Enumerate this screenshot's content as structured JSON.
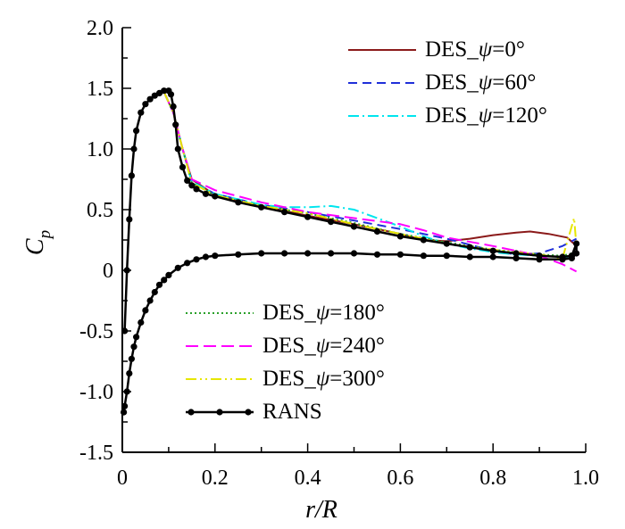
{
  "chart_data": {
    "type": "line",
    "title": "",
    "xlabel": "r/R",
    "ylabel": "C_p",
    "ylabel_main": "C",
    "ylabel_sub": "p",
    "xlim": [
      0,
      1.0
    ],
    "ylim": [
      -1.5,
      2.0
    ],
    "x_ticks": [
      0,
      0.2,
      0.4,
      0.6,
      0.8,
      1.0
    ],
    "x_tick_labels": [
      "0",
      "0.2",
      "0.4",
      "0.6",
      "0.8",
      "1.0"
    ],
    "y_ticks": [
      -1.5,
      -1.0,
      -0.5,
      0,
      0.5,
      1.0,
      1.5,
      2.0
    ],
    "y_tick_labels": [
      "-1.5",
      "-1.0",
      "-0.5",
      "0",
      "0.5",
      "1.0",
      "1.5",
      "2.0"
    ],
    "grid": false,
    "series": [
      {
        "name": "DES_ψ=0°",
        "prefix": "DES_",
        "greek": "ψ",
        "suffix": "=0°",
        "color": "#8B1A1A",
        "dash": "",
        "legend_group": "top",
        "x": [
          0.09,
          0.11,
          0.13,
          0.15,
          0.2,
          0.3,
          0.4,
          0.5,
          0.6,
          0.65,
          0.7,
          0.75,
          0.8,
          0.85,
          0.88,
          0.92,
          0.96,
          0.98
        ],
        "y": [
          1.47,
          1.3,
          1.0,
          0.75,
          0.62,
          0.53,
          0.45,
          0.38,
          0.3,
          0.25,
          0.24,
          0.26,
          0.29,
          0.31,
          0.32,
          0.3,
          0.27,
          0.2
        ]
      },
      {
        "name": "DES_ψ=60°",
        "prefix": "DES_",
        "greek": "ψ",
        "suffix": "=60°",
        "color": "#1F2FD9",
        "dash": "10,6",
        "legend_group": "top",
        "x": [
          0.09,
          0.11,
          0.13,
          0.15,
          0.2,
          0.3,
          0.4,
          0.5,
          0.6,
          0.7,
          0.8,
          0.85,
          0.9,
          0.95,
          0.98
        ],
        "y": [
          1.47,
          1.3,
          1.0,
          0.73,
          0.63,
          0.54,
          0.48,
          0.41,
          0.34,
          0.26,
          0.16,
          0.13,
          0.14,
          0.2,
          0.26
        ]
      },
      {
        "name": "DES_ψ=120°",
        "prefix": "DES_",
        "greek": "ψ",
        "suffix": "=120°",
        "color": "#00E5EE",
        "dash": "12,4,2,4",
        "legend_group": "top",
        "x": [
          0.09,
          0.11,
          0.13,
          0.15,
          0.2,
          0.3,
          0.35,
          0.4,
          0.45,
          0.5,
          0.55,
          0.6,
          0.65,
          0.7,
          0.75,
          0.8,
          0.85,
          0.9,
          0.95,
          0.98
        ],
        "y": [
          1.47,
          1.3,
          1.0,
          0.73,
          0.63,
          0.54,
          0.52,
          0.52,
          0.53,
          0.5,
          0.43,
          0.36,
          0.28,
          0.22,
          0.18,
          0.15,
          0.13,
          0.12,
          0.11,
          0.1
        ]
      },
      {
        "name": "DES_ψ=180°",
        "prefix": "DES_",
        "greek": "ψ",
        "suffix": "=180°",
        "color": "#2AA02A",
        "dash": "2,3",
        "legend_group": "bottom",
        "x": [
          0.09,
          0.11,
          0.13,
          0.15,
          0.2,
          0.3,
          0.4,
          0.5,
          0.6,
          0.7,
          0.8,
          0.9,
          0.95,
          0.98
        ],
        "y": [
          1.47,
          1.3,
          1.0,
          0.72,
          0.62,
          0.53,
          0.47,
          0.39,
          0.3,
          0.23,
          0.17,
          0.13,
          0.12,
          0.15
        ]
      },
      {
        "name": "DES_ψ=240°",
        "prefix": "DES_",
        "greek": "ψ",
        "suffix": "=240°",
        "color": "#FF00FF",
        "dash": "14,6",
        "legend_group": "bottom",
        "x": [
          0.09,
          0.11,
          0.13,
          0.15,
          0.2,
          0.3,
          0.4,
          0.5,
          0.6,
          0.65,
          0.7,
          0.8,
          0.9,
          0.95,
          0.98
        ],
        "y": [
          1.47,
          1.3,
          1.0,
          0.75,
          0.66,
          0.56,
          0.48,
          0.43,
          0.38,
          0.33,
          0.27,
          0.2,
          0.12,
          0.05,
          -0.01
        ]
      },
      {
        "name": "DES_ψ=300°",
        "prefix": "DES_",
        "greek": "ψ",
        "suffix": "=300°",
        "color": "#E6E600",
        "dash": "12,4,2,4,2,4",
        "legend_group": "bottom",
        "x": [
          0.09,
          0.11,
          0.13,
          0.15,
          0.2,
          0.3,
          0.4,
          0.5,
          0.6,
          0.7,
          0.8,
          0.9,
          0.95,
          0.975,
          0.98
        ],
        "y": [
          1.47,
          1.3,
          1.0,
          0.72,
          0.62,
          0.53,
          0.47,
          0.38,
          0.3,
          0.22,
          0.17,
          0.13,
          0.1,
          0.43,
          0.2
        ]
      },
      {
        "name": "RANS",
        "prefix": "RANS",
        "greek": "",
        "suffix": "",
        "color": "#000000",
        "dash": "",
        "legend_group": "bottom",
        "markers": true,
        "x": [
          0.005,
          0.01,
          0.015,
          0.02,
          0.025,
          0.03,
          0.04,
          0.05,
          0.06,
          0.07,
          0.08,
          0.09,
          0.1,
          0.105,
          0.11,
          0.115,
          0.12,
          0.13,
          0.14,
          0.15,
          0.16,
          0.18,
          0.2,
          0.25,
          0.3,
          0.35,
          0.4,
          0.45,
          0.5,
          0.55,
          0.6,
          0.65,
          0.7,
          0.75,
          0.8,
          0.85,
          0.9,
          0.95,
          0.97,
          0.98,
          0.98,
          0.97,
          0.95,
          0.9,
          0.85,
          0.8,
          0.75,
          0.7,
          0.65,
          0.6,
          0.55,
          0.5,
          0.45,
          0.4,
          0.35,
          0.3,
          0.25,
          0.2,
          0.18,
          0.16,
          0.14,
          0.12,
          0.1,
          0.09,
          0.08,
          0.07,
          0.06,
          0.05,
          0.04,
          0.03,
          0.025,
          0.02,
          0.015,
          0.01,
          0.005,
          0.003
        ],
        "y": [
          -0.5,
          0.0,
          0.42,
          0.78,
          1.0,
          1.15,
          1.3,
          1.37,
          1.41,
          1.44,
          1.46,
          1.48,
          1.48,
          1.45,
          1.35,
          1.2,
          1.0,
          0.85,
          0.74,
          0.7,
          0.67,
          0.63,
          0.61,
          0.56,
          0.52,
          0.48,
          0.44,
          0.4,
          0.36,
          0.32,
          0.28,
          0.25,
          0.22,
          0.19,
          0.16,
          0.14,
          0.12,
          0.11,
          0.12,
          0.22,
          0.14,
          0.1,
          0.09,
          0.09,
          0.1,
          0.11,
          0.11,
          0.12,
          0.12,
          0.13,
          0.13,
          0.14,
          0.14,
          0.14,
          0.14,
          0.14,
          0.13,
          0.12,
          0.11,
          0.09,
          0.06,
          0.02,
          -0.04,
          -0.08,
          -0.12,
          -0.18,
          -0.25,
          -0.33,
          -0.43,
          -0.55,
          -0.63,
          -0.73,
          -0.85,
          -1.0,
          -1.12,
          -1.17
        ]
      }
    ]
  }
}
